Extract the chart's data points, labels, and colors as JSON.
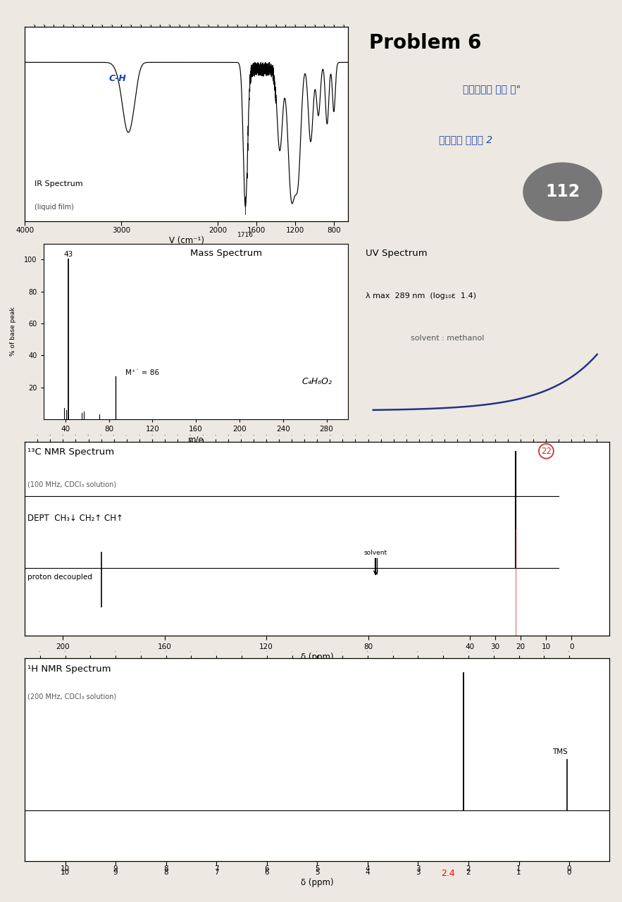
{
  "bg_color": "#ede9e2",
  "title": "Problem 6",
  "problem_number": "112",
  "ir_title": "IR Spectrum",
  "ir_subtitle": "(liquid film)",
  "ir_xlabel": "V (cm⁻¹)",
  "ir_ch_label": "C-H",
  "ir_1716_label": "1716",
  "ms_title": "Mass Spectrum",
  "ms_xlabel": "m/e",
  "ms_ylabel": "% of base peak",
  "ms_formula": "C₄H₆O₂",
  "ms_mplus_label": "M⁺˙ = 86",
  "uv_title": "UV Spectrum",
  "uv_line1": "λ max  289 nm  (log₁₀ε  1.4)",
  "uv_line2": "solvent : methanol",
  "c13_title": "¹³C NMR Spectrum",
  "c13_subtitle": "(100 MHz, CDCl₃ solution)",
  "dept_label": "DEPT  CH₃↓ CH₂↑ CH↑",
  "proton_label": "proton decoupled",
  "solvent_label": "solvent",
  "h1_title": "¹H NMR Spectrum",
  "h1_subtitle": "(200 MHz, CDCl₃ solution)",
  "tms_label": "TMS",
  "annotation_24": "2.4"
}
